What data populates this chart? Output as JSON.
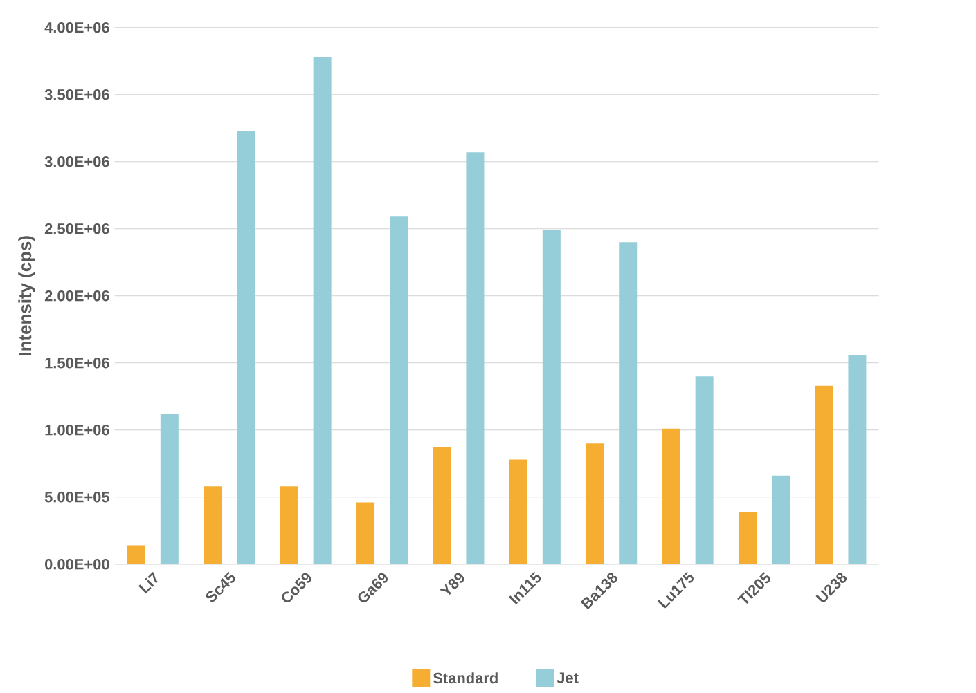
{
  "chart_data": {
    "type": "bar",
    "ylabel": "Intensity (cps)",
    "categories": [
      "Li7",
      "Sc45",
      "Co59",
      "Ga69",
      "Y89",
      "In115",
      "Ba138",
      "Lu175",
      "Tl205",
      "U238"
    ],
    "series": [
      {
        "name": "Standard",
        "color": "#f5ae32",
        "values": [
          140000,
          580000,
          580000,
          460000,
          870000,
          780000,
          900000,
          1010000,
          390000,
          1330000
        ]
      },
      {
        "name": "Jet",
        "color": "#95ced8",
        "values": [
          1120000,
          3230000,
          3780000,
          2590000,
          3070000,
          2490000,
          2400000,
          1400000,
          660000,
          1560000
        ]
      }
    ],
    "ylim": [
      0,
      4000000
    ],
    "yticks": [
      {
        "value": 0,
        "label": "0.00E+00"
      },
      {
        "value": 500000,
        "label": "5.00E+05"
      },
      {
        "value": 1000000,
        "label": "1.00E+06"
      },
      {
        "value": 1500000,
        "label": "1.50E+06"
      },
      {
        "value": 2000000,
        "label": "2.00E+06"
      },
      {
        "value": 2500000,
        "label": "2.50E+06"
      },
      {
        "value": 3000000,
        "label": "3.00E+06"
      },
      {
        "value": 3500000,
        "label": "3.50E+06"
      },
      {
        "value": 4000000,
        "label": "4.00E+06"
      }
    ],
    "grid": "y",
    "legend": "bottom"
  }
}
